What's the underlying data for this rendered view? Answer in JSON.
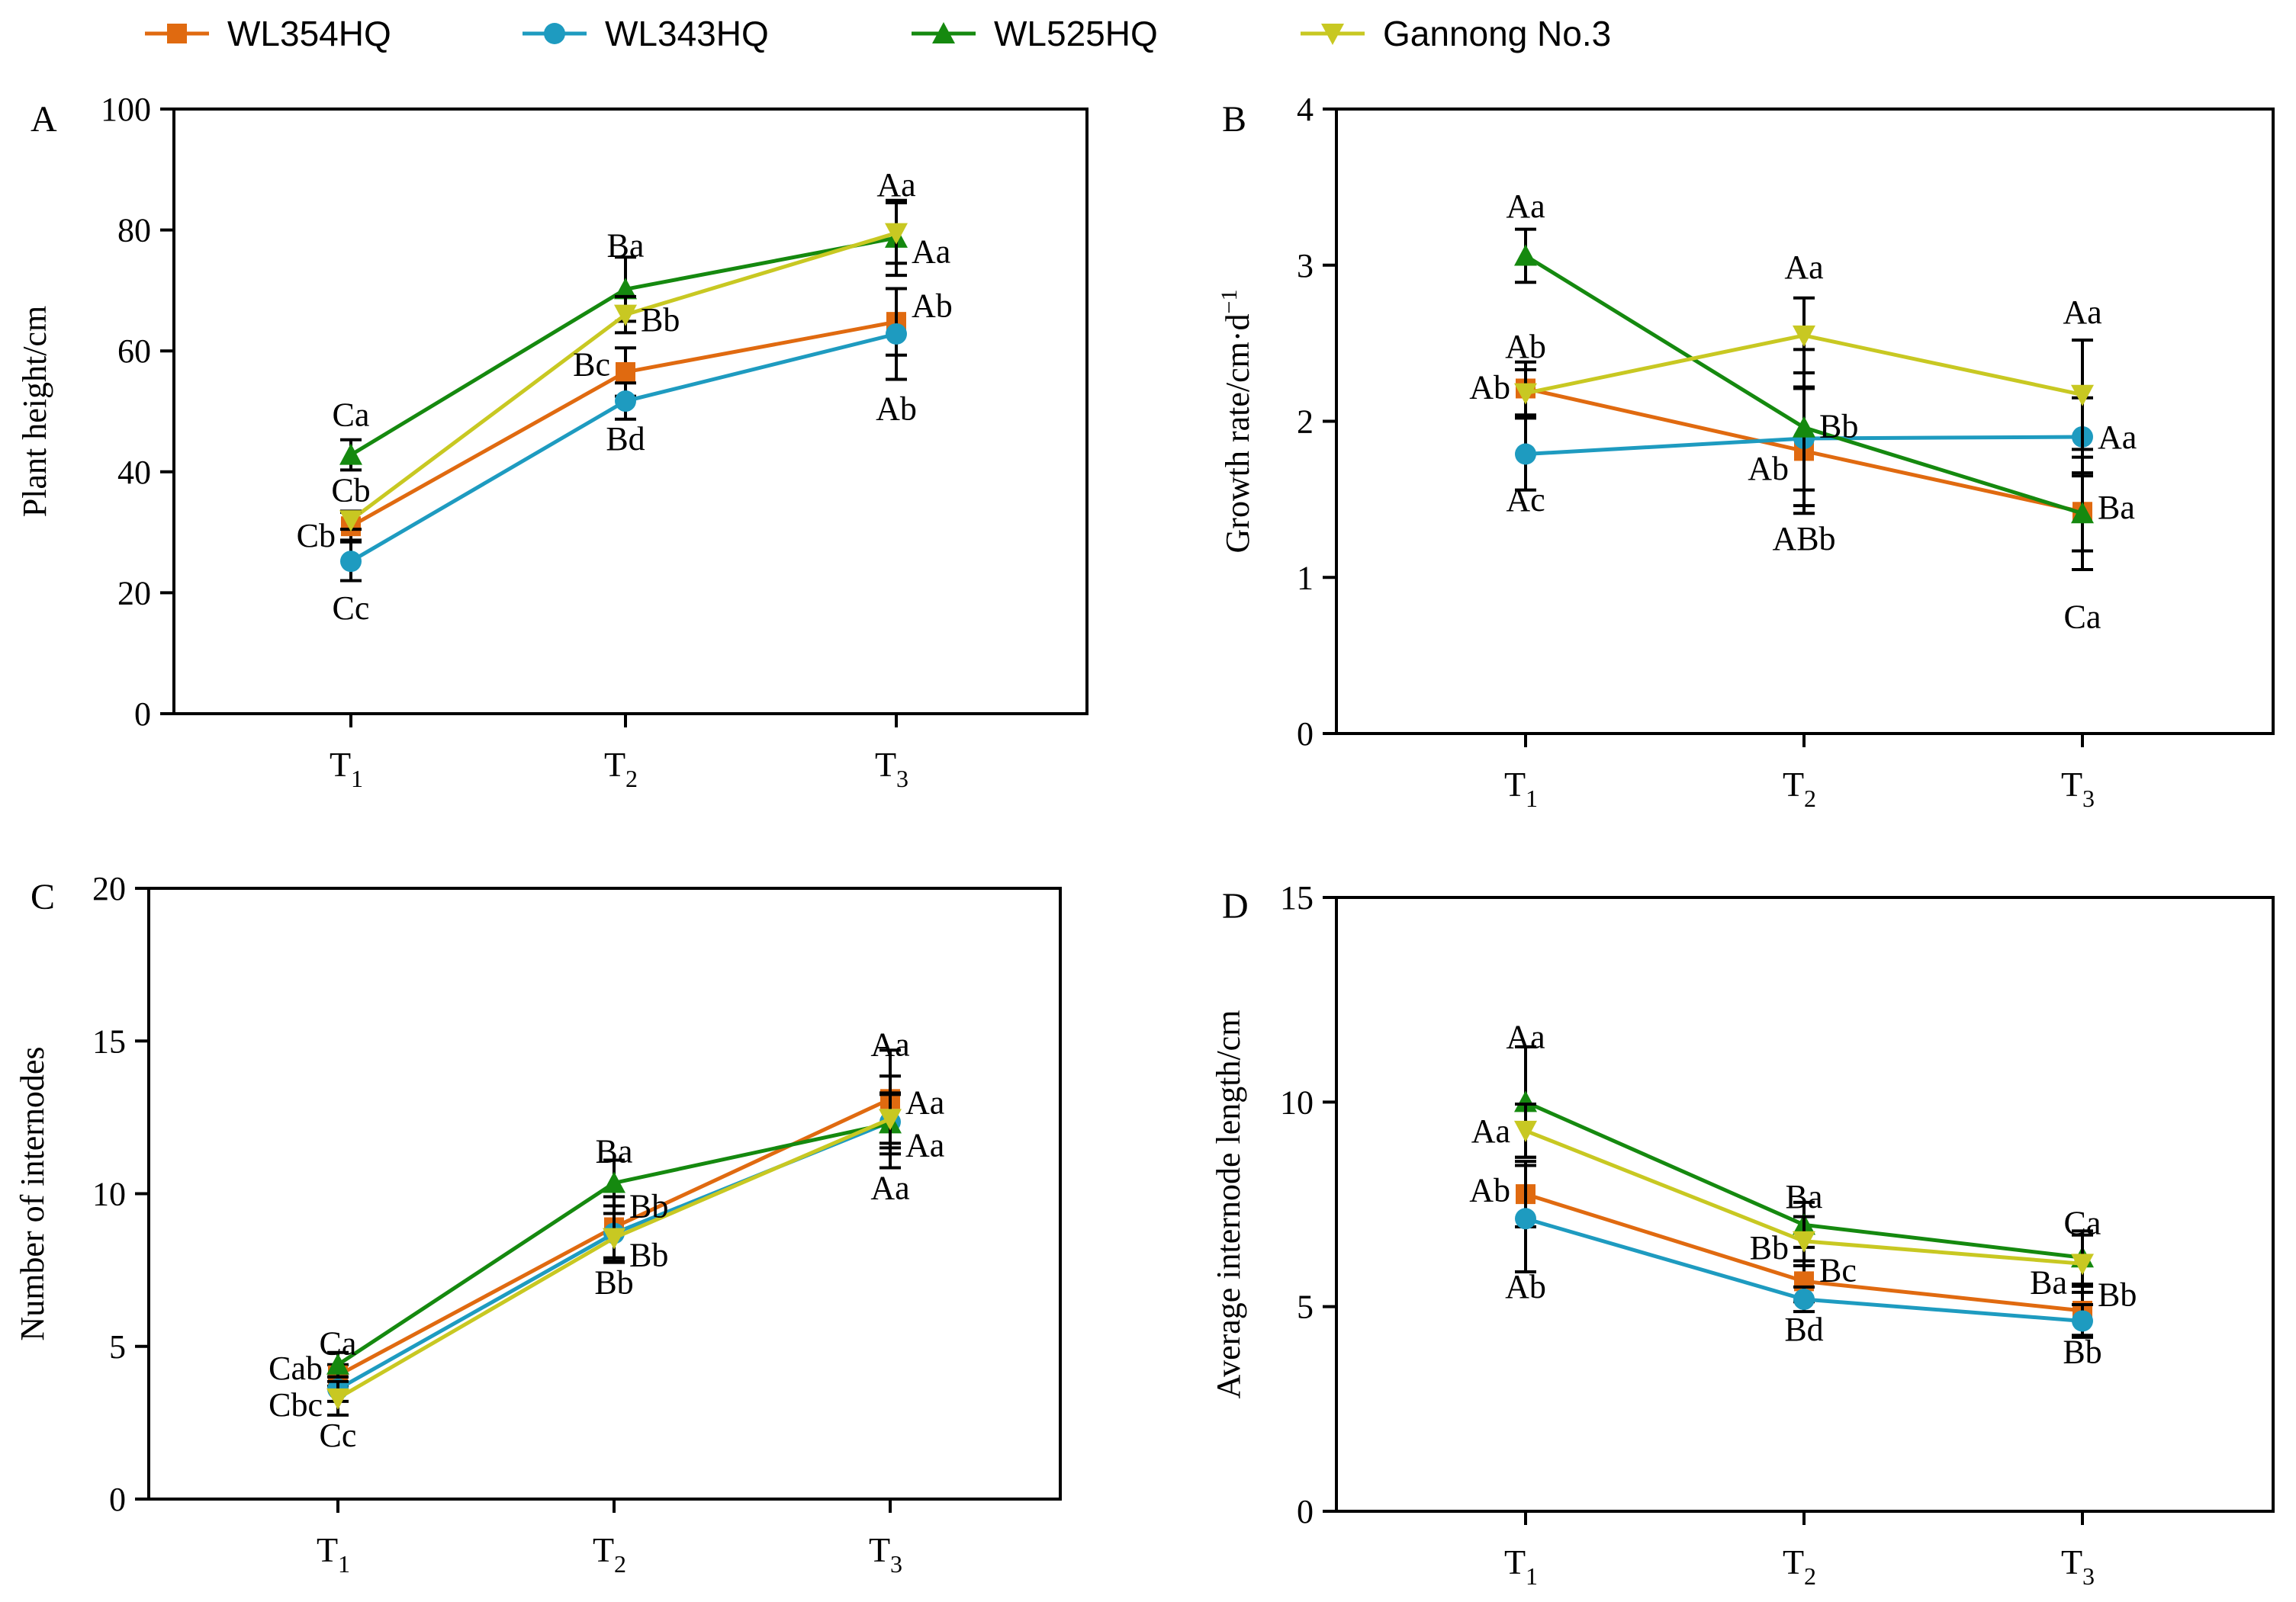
{
  "legend": [
    {
      "name": "WL354HQ",
      "color": "#E06A10",
      "marker": "square"
    },
    {
      "name": "WL343HQ",
      "color": "#1E9BC0",
      "marker": "circle"
    },
    {
      "name": "WL525HQ",
      "color": "#15890F",
      "marker": "triangle-up"
    },
    {
      "name": "Gannong No.3",
      "color": "#C8C822",
      "marker": "triangle-down"
    }
  ],
  "chart_data": [
    {
      "type": "line",
      "panel_label": "A",
      "ylabel": "Plant height/cm",
      "ylim": [
        0,
        100
      ],
      "yticks": [
        "0",
        "20",
        "40",
        "60",
        "80",
        "100"
      ],
      "categories": [
        {
          "base": "T",
          "sub": "1"
        },
        {
          "base": "T",
          "sub": "2"
        },
        {
          "base": "T",
          "sub": "3"
        }
      ],
      "series": [
        {
          "name": "WL354HQ",
          "values": [
            31,
            56.5,
            64.8
          ],
          "errors": [
            2.3,
            4,
            5.5
          ]
        },
        {
          "name": "WL343HQ",
          "values": [
            25.2,
            51.7,
            62.8
          ],
          "errors": [
            3.2,
            3,
            7.5
          ]
        },
        {
          "name": "WL525HQ",
          "values": [
            42.8,
            70.2,
            78.7
          ],
          "errors": [
            2.5,
            5.3,
            6.2
          ]
        },
        {
          "name": "Gannong No.3",
          "values": [
            32,
            66,
            79.5
          ],
          "errors": [
            1.5,
            3,
            5
          ]
        }
      ],
      "annotations": [
        {
          "text": "Ca",
          "x": 0,
          "y": 49.5,
          "pos": "above"
        },
        {
          "text": "Cb",
          "x": 0,
          "y": 37,
          "pos": "above"
        },
        {
          "text": "Cb",
          "x": 0,
          "y": 29.5,
          "pos": "left"
        },
        {
          "text": "Cc",
          "x": 0,
          "y": 17.5,
          "pos": "below"
        },
        {
          "text": "Ba",
          "x": 1,
          "y": 77.5,
          "pos": "above"
        },
        {
          "text": "Bb",
          "x": 1,
          "y": 65.2,
          "pos": "right"
        },
        {
          "text": "Bc",
          "x": 1,
          "y": 57.8,
          "pos": "left"
        },
        {
          "text": "Bd",
          "x": 1,
          "y": 45.5,
          "pos": "below"
        },
        {
          "text": "Aa",
          "x": 2,
          "y": 87.5,
          "pos": "above"
        },
        {
          "text": "Aa",
          "x": 2,
          "y": 76.5,
          "pos": "right"
        },
        {
          "text": "Ab",
          "x": 2,
          "y": 67.5,
          "pos": "right"
        },
        {
          "text": "Ab",
          "x": 2,
          "y": 50.5,
          "pos": "below"
        }
      ]
    },
    {
      "type": "line",
      "panel_label": "B",
      "ylabel": "Growth rate/cm·d",
      "ylabel_sup": "−1",
      "ylim": [
        0,
        4
      ],
      "yticks": [
        "0",
        "1",
        "2",
        "3",
        "4"
      ],
      "categories": [
        {
          "base": "T",
          "sub": "1"
        },
        {
          "base": "T",
          "sub": "2"
        },
        {
          "base": "T",
          "sub": "3"
        }
      ],
      "series": [
        {
          "name": "WL354HQ",
          "values": [
            2.21,
            1.81,
            1.42
          ],
          "errors": [
            0.17,
            0.4,
            0.25
          ]
        },
        {
          "name": "WL343HQ",
          "values": [
            1.79,
            1.89,
            1.9
          ],
          "errors": [
            0.23,
            0.33,
            0.25
          ]
        },
        {
          "name": "WL525HQ",
          "values": [
            3.06,
            1.96,
            1.41
          ],
          "errors": [
            0.17,
            0.5,
            0.36
          ]
        },
        {
          "name": "Gannong No.3",
          "values": [
            2.18,
            2.55,
            2.17
          ],
          "errors": [
            0.15,
            0.24,
            0.35
          ]
        }
      ],
      "annotations": [
        {
          "text": "Aa",
          "x": 0,
          "y": 3.38,
          "pos": "above"
        },
        {
          "text": "Ab",
          "x": 0,
          "y": 2.48,
          "pos": "above"
        },
        {
          "text": "Ab",
          "x": 0,
          "y": 2.22,
          "pos": "left"
        },
        {
          "text": "Ac",
          "x": 0,
          "y": 1.5,
          "pos": "below"
        },
        {
          "text": "Aa",
          "x": 1,
          "y": 2.99,
          "pos": "above"
        },
        {
          "text": "Bb",
          "x": 1,
          "y": 1.97,
          "pos": "right"
        },
        {
          "text": "Ab",
          "x": 1,
          "y": 1.7,
          "pos": "left"
        },
        {
          "text": "ABb",
          "x": 1,
          "y": 1.25,
          "pos": "below"
        },
        {
          "text": "Aa",
          "x": 2,
          "y": 2.7,
          "pos": "above"
        },
        {
          "text": "Aa",
          "x": 2,
          "y": 1.9,
          "pos": "right"
        },
        {
          "text": "Ba",
          "x": 2,
          "y": 1.45,
          "pos": "right"
        },
        {
          "text": "Ca",
          "x": 2,
          "y": 0.75,
          "pos": "below"
        }
      ]
    },
    {
      "type": "line",
      "panel_label": "C",
      "ylabel": "Number of internodes",
      "ylim": [
        0,
        20
      ],
      "yticks": [
        "0",
        "5",
        "10",
        "15",
        "20"
      ],
      "categories": [
        {
          "base": "T",
          "sub": "1"
        },
        {
          "base": "T",
          "sub": "2"
        },
        {
          "base": "T",
          "sub": "3"
        }
      ],
      "series": [
        {
          "name": "WL354HQ",
          "values": [
            4.05,
            8.9,
            13.1
          ],
          "errors": [
            0.35,
            1.0,
            1.6
          ]
        },
        {
          "name": "WL343HQ",
          "values": [
            3.6,
            8.7,
            12.35
          ],
          "errors": [
            0.4,
            0.9,
            1.5
          ]
        },
        {
          "name": "WL525HQ",
          "values": [
            4.4,
            10.35,
            12.3
          ],
          "errors": [
            0.4,
            0.75,
            1.0
          ]
        },
        {
          "name": "Gannong No.3",
          "values": [
            3.3,
            8.55,
            12.45
          ],
          "errors": [
            0.55,
            0.8,
            0.8
          ]
        }
      ],
      "annotations": [
        {
          "text": "Ca",
          "x": 0,
          "y": 5.1,
          "pos": "above"
        },
        {
          "text": "Cab",
          "x": 0,
          "y": 4.3,
          "pos": "left"
        },
        {
          "text": "Cbc",
          "x": 0,
          "y": 3.1,
          "pos": "left"
        },
        {
          "text": "Cc",
          "x": 0,
          "y": 2.1,
          "pos": "below"
        },
        {
          "text": "Ba",
          "x": 1,
          "y": 11.4,
          "pos": "above"
        },
        {
          "text": "Bb",
          "x": 1,
          "y": 9.6,
          "pos": "right"
        },
        {
          "text": "Bb",
          "x": 1,
          "y": 8.0,
          "pos": "right"
        },
        {
          "text": "Bb",
          "x": 1,
          "y": 7.1,
          "pos": "below"
        },
        {
          "text": "Aa",
          "x": 2,
          "y": 14.9,
          "pos": "above"
        },
        {
          "text": "Aa",
          "x": 2,
          "y": 13.0,
          "pos": "right"
        },
        {
          "text": "Aa",
          "x": 2,
          "y": 11.6,
          "pos": "right"
        },
        {
          "text": "Aa",
          "x": 2,
          "y": 10.2,
          "pos": "below"
        }
      ]
    },
    {
      "type": "line",
      "panel_label": "D",
      "ylabel": "Average internode length/cm",
      "ylim": [
        0,
        15
      ],
      "yticks": [
        "0",
        "5",
        "10",
        "15"
      ],
      "categories": [
        {
          "base": "T",
          "sub": "1"
        },
        {
          "base": "T",
          "sub": "2"
        },
        {
          "base": "T",
          "sub": "3"
        }
      ],
      "series": [
        {
          "name": "WL354HQ",
          "values": [
            7.75,
            5.62,
            4.9
          ],
          "errors": [
            0.8,
            0.5,
            0.6
          ]
        },
        {
          "name": "WL343HQ",
          "values": [
            7.15,
            5.18,
            4.65
          ],
          "errors": [
            1.3,
            0.3,
            0.4
          ]
        },
        {
          "name": "WL525HQ",
          "values": [
            10.0,
            7.0,
            6.2
          ],
          "errors": [
            1.35,
            0.55,
            0.65
          ]
        },
        {
          "name": "Gannong No.3",
          "values": [
            9.3,
            6.6,
            6.05
          ],
          "errors": [
            0.65,
            0.6,
            0.7
          ]
        }
      ],
      "annotations": [
        {
          "text": "Aa",
          "x": 0,
          "y": 11.6,
          "pos": "above"
        },
        {
          "text": "Aa",
          "x": 0,
          "y": 9.3,
          "pos": "left"
        },
        {
          "text": "Ab",
          "x": 0,
          "y": 7.85,
          "pos": "left"
        },
        {
          "text": "Ab",
          "x": 0,
          "y": 5.5,
          "pos": "below"
        },
        {
          "text": "Ba",
          "x": 1,
          "y": 7.7,
          "pos": "above"
        },
        {
          "text": "Bb",
          "x": 1,
          "y": 6.45,
          "pos": "left"
        },
        {
          "text": "Bc",
          "x": 1,
          "y": 5.9,
          "pos": "right"
        },
        {
          "text": "Bd",
          "x": 1,
          "y": 4.45,
          "pos": "below"
        },
        {
          "text": "Ca",
          "x": 2,
          "y": 7.05,
          "pos": "above"
        },
        {
          "text": "Ba",
          "x": 2,
          "y": 5.6,
          "pos": "left"
        },
        {
          "text": "Bb",
          "x": 2,
          "y": 5.3,
          "pos": "right"
        },
        {
          "text": "Bb",
          "x": 2,
          "y": 3.9,
          "pos": "below"
        }
      ]
    }
  ]
}
